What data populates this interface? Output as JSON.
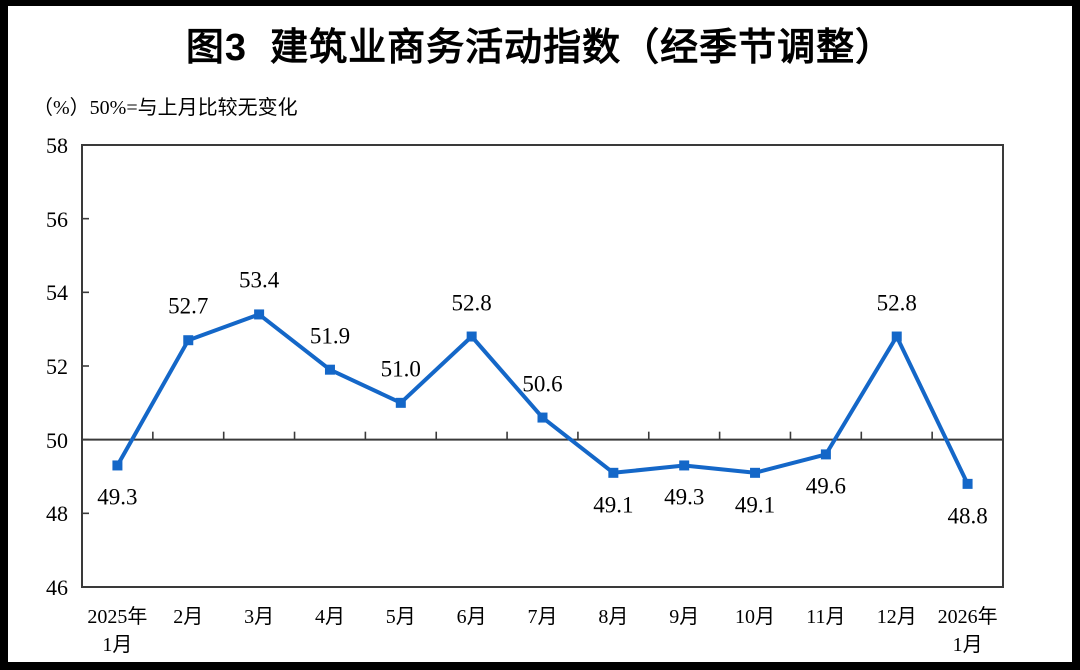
{
  "title": "图3  建筑业商务活动指数（经季节调整）",
  "unit_note": "（%）50%=与上月比较无变化",
  "colors": {
    "series_line": "#1467C8",
    "axis": "#3a3a3a",
    "outer_frame": "#000000",
    "text": "#000000"
  },
  "chart_data": {
    "type": "line",
    "title": "图3  建筑业商务活动指数（经季节调整）",
    "unit_label": "（%）50%=与上月比较无变化",
    "categories": [
      [
        "2025年",
        "1月"
      ],
      "2月",
      "3月",
      "4月",
      "5月",
      "6月",
      "7月",
      "8月",
      "9月",
      "10月",
      "11月",
      "12月",
      [
        "2026年",
        "1月"
      ]
    ],
    "values": [
      49.3,
      52.7,
      53.4,
      51.9,
      51.0,
      52.8,
      50.6,
      49.1,
      49.3,
      49.1,
      49.6,
      52.8,
      48.8
    ],
    "ylim": [
      46,
      58
    ],
    "ytick_step": 2,
    "yticks": [
      58,
      56,
      54,
      52,
      50,
      48,
      46
    ],
    "reference_line": 50,
    "marker": "square",
    "data_labels_shown": true,
    "grid": "off",
    "legend": "none"
  }
}
